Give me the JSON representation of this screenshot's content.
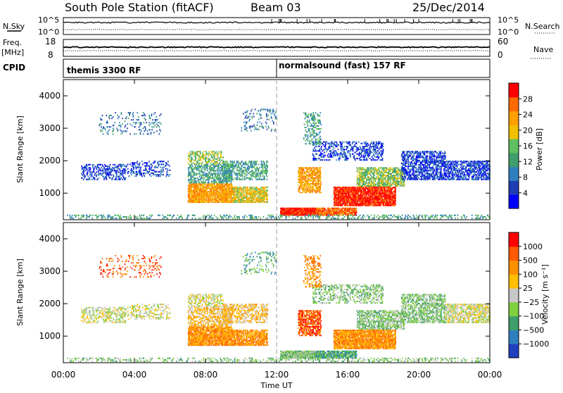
{
  "header": {
    "station": "South Pole Station (fitACF)",
    "beam": "Beam 03",
    "date": "25/Dec/2014"
  },
  "strips": {
    "nsky_label": "N.Sky",
    "nsky_ticks": [
      "10^5",
      "10^0"
    ],
    "nsearch_label": "N.Search",
    "nsearch_ticks": [
      "10^5",
      "10^0"
    ],
    "freq_label_top": "Freq.",
    "freq_label_bottom": "[MHz]",
    "freq_ticks": [
      "18",
      "8"
    ],
    "nave_label": "Nave",
    "nave_ticks": [
      "60",
      "0"
    ],
    "cpid_label": "CPID",
    "cpid_segments": [
      {
        "text": "themis 3300 RF",
        "start_hour": 0
      },
      {
        "text": "normalsound (fast) 157 RF",
        "start_hour": 12
      }
    ]
  },
  "chart_data": [
    {
      "type": "heatmap",
      "quantity": "power",
      "ylabel": "Slant Range [km]",
      "ylim": [
        180,
        4500
      ],
      "yticks": [
        1000,
        2000,
        3000,
        4000
      ],
      "xlim_hours": [
        0,
        24
      ],
      "colorbar": {
        "label": "Power [dB]",
        "ticks": [
          "28",
          "24",
          "20",
          "16",
          "12",
          "8",
          "4"
        ],
        "range": [
          0,
          30
        ]
      },
      "colors": [
        "#0000ff",
        "#1e3cb4",
        "#2f7fbf",
        "#3f9e6b",
        "#5fbf5f",
        "#f0c000",
        "#ff9f00",
        "#ff6a00",
        "#ff0000"
      ]
    },
    {
      "type": "heatmap",
      "quantity": "velocity",
      "ylabel": "Slant Range [km]",
      "ylim": [
        180,
        4500
      ],
      "yticks": [
        1000,
        2000,
        3000,
        4000
      ],
      "xlabel": "Time UT",
      "xticks": [
        "00:00",
        "04:00",
        "08:00",
        "12:00",
        "16:00",
        "20:00",
        "00:00"
      ],
      "xlim_hours": [
        0,
        24
      ],
      "colorbar": {
        "label": "Velocity [m s⁻¹]",
        "ticks": [
          "1000",
          "500",
          "100",
          "25",
          "−25",
          "−100",
          "−500",
          "−1000"
        ]
      },
      "colors": [
        "#1f3fbf",
        "#2f7fbf",
        "#3f9e6b",
        "#7fcf3f",
        "#c8c8c8",
        "#ffbf00",
        "#ff8f00",
        "#ff5a00",
        "#ff0000"
      ]
    }
  ]
}
